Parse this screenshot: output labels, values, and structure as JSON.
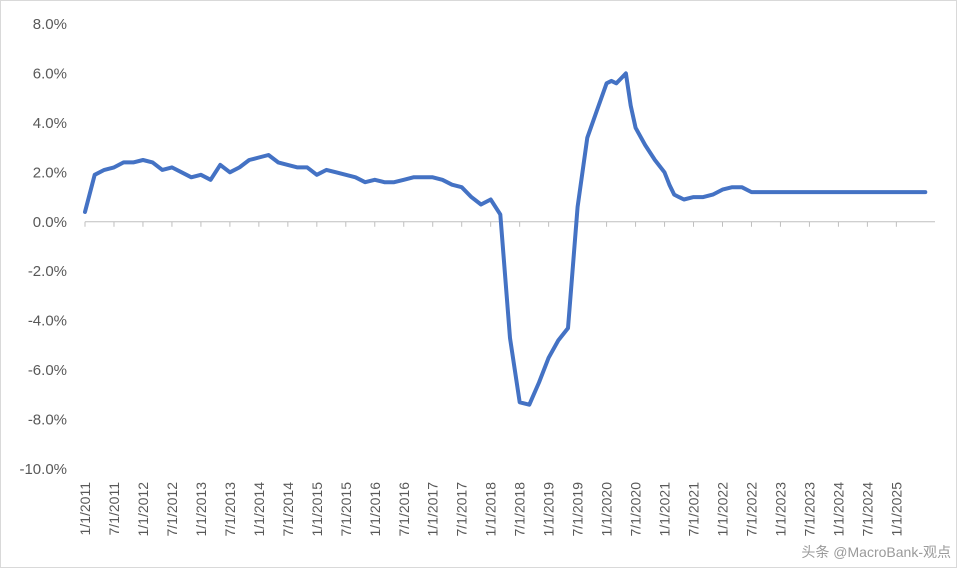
{
  "chart_data": {
    "type": "line",
    "title": "",
    "xlabel": "",
    "ylabel": "",
    "ylim": [
      -0.1,
      0.08
    ],
    "y_tick_labels": [
      "8.0%",
      "6.0%",
      "4.0%",
      "2.0%",
      "0.0%",
      "-2.0%",
      "-4.0%",
      "-6.0%",
      "-8.0%",
      "-10.0%"
    ],
    "y_tick_values": [
      0.08,
      0.06,
      0.04,
      0.02,
      0.0,
      -0.02,
      -0.04,
      -0.06,
      -0.08,
      -0.1
    ],
    "x_tick_labels": [
      "1/1/2011",
      "7/1/2011",
      "1/1/2012",
      "7/1/2012",
      "1/1/2013",
      "7/1/2013",
      "1/1/2014",
      "7/1/2014",
      "1/1/2015",
      "7/1/2015",
      "1/1/2016",
      "7/1/2016",
      "1/1/2017",
      "7/1/2017",
      "1/1/2018",
      "7/1/2018",
      "1/1/2019",
      "7/1/2019",
      "1/1/2020",
      "7/1/2020",
      "1/1/2021",
      "7/1/2021",
      "1/1/2022",
      "7/1/2022",
      "1/1/2023",
      "7/1/2023",
      "1/1/2024",
      "7/1/2024",
      "1/1/2025"
    ],
    "grid": false,
    "legend": "none",
    "line_color": "#4472C4",
    "series": [
      {
        "x": [
          "2011-01",
          "2011-03",
          "2011-05",
          "2011-07",
          "2011-09",
          "2011-11",
          "2012-01",
          "2012-03",
          "2012-05",
          "2012-07",
          "2012-09",
          "2012-11",
          "2013-01",
          "2013-03",
          "2013-05",
          "2013-07",
          "2013-09",
          "2013-11",
          "2014-01",
          "2014-03",
          "2014-05",
          "2014-07",
          "2014-09",
          "2014-11",
          "2015-01",
          "2015-03",
          "2015-05",
          "2015-07",
          "2015-09",
          "2015-11",
          "2016-01",
          "2016-03",
          "2016-05",
          "2016-07",
          "2016-09",
          "2016-11",
          "2017-01",
          "2017-03",
          "2017-05",
          "2017-07",
          "2017-09",
          "2017-11",
          "2018-01",
          "2018-03",
          "2018-05",
          "2018-07",
          "2018-09",
          "2018-11",
          "2019-01",
          "2019-03",
          "2019-05",
          "2019-07",
          "2019-09",
          "2019-11",
          "2020-01",
          "2020-02",
          "2020-03",
          "2020-04",
          "2020-05",
          "2020-06",
          "2020-07",
          "2020-09",
          "2020-11",
          "2021-01",
          "2021-02",
          "2021-03",
          "2021-04",
          "2021-05",
          "2021-07",
          "2021-09",
          "2021-11",
          "2022-01",
          "2022-03",
          "2022-05",
          "2022-07",
          "2022-09",
          "2022-11",
          "2023-01",
          "2023-03",
          "2023-05",
          "2023-07",
          "2023-09",
          "2023-11",
          "2024-01",
          "2024-03",
          "2024-05",
          "2024-07",
          "2024-09",
          "2024-11",
          "2025-01",
          "2025-03",
          "2025-05",
          "2025-07"
        ],
        "values": [
          0.004,
          0.019,
          0.021,
          0.022,
          0.024,
          0.024,
          0.025,
          0.024,
          0.021,
          0.022,
          0.02,
          0.018,
          0.019,
          0.017,
          0.023,
          0.02,
          0.022,
          0.025,
          0.026,
          0.027,
          0.024,
          0.023,
          0.022,
          0.022,
          0.019,
          0.021,
          0.02,
          0.019,
          0.018,
          0.016,
          0.017,
          0.016,
          0.016,
          0.017,
          0.018,
          0.018,
          0.018,
          0.017,
          0.015,
          0.014,
          0.01,
          0.007,
          0.009,
          0.003,
          -0.047,
          -0.073,
          -0.074,
          -0.065,
          -0.055,
          -0.048,
          -0.043,
          0.006,
          0.034,
          0.045,
          0.056,
          0.057,
          0.056,
          0.058,
          0.06,
          0.047,
          0.038,
          0.031,
          0.025,
          0.02,
          0.015,
          0.011,
          0.01,
          0.009,
          0.01,
          0.01,
          0.011,
          0.013,
          0.014,
          0.014,
          0.012,
          0.012,
          0.012,
          0.012,
          0.012,
          0.012,
          0.012,
          0.012,
          0.012,
          0.012,
          0.012,
          0.012,
          0.012,
          0.012,
          0.012,
          0.012,
          0.012,
          0.012,
          0.012
        ]
      }
    ]
  },
  "watermark": "头条 @MacroBank-观点"
}
